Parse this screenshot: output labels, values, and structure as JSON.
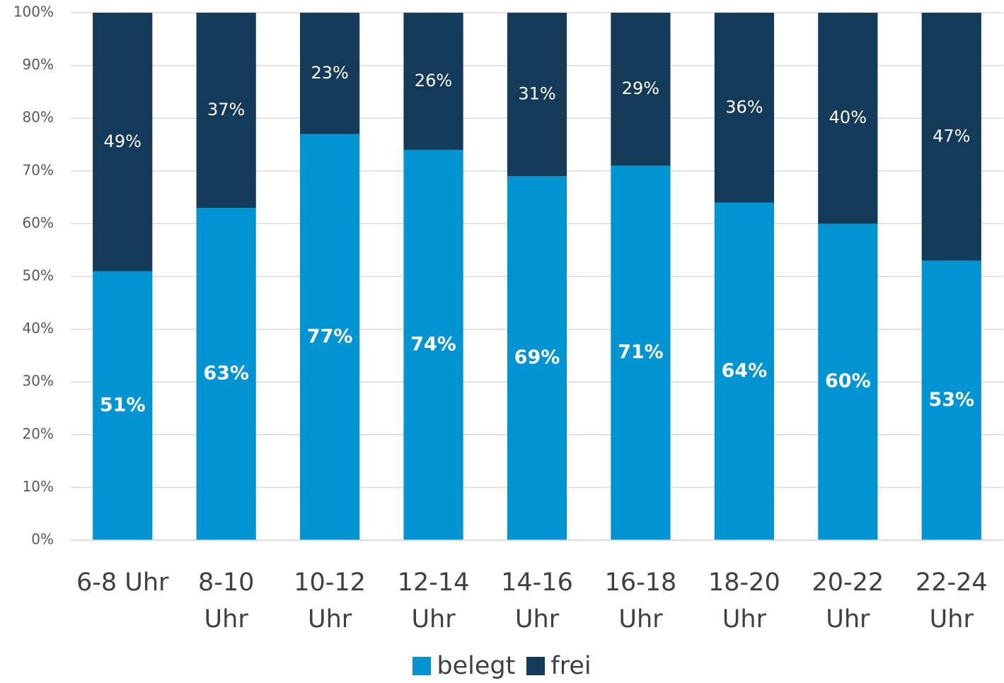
{
  "chart_data": {
    "type": "stacked_bar",
    "categories": [
      "6-8 Uhr",
      "8-10 Uhr",
      "10-12 Uhr",
      "12-14 Uhr",
      "14-16 Uhr",
      "16-18 Uhr",
      "18-20 Uhr",
      "20-22 Uhr",
      "22-24 Uhr"
    ],
    "series": [
      {
        "name": "belegt",
        "color": "#0095d2",
        "values": [
          51,
          63,
          77,
          74,
          69,
          71,
          64,
          60,
          53
        ],
        "value_labels": [
          "51%",
          "63%",
          "77%",
          "74%",
          "69%",
          "71%",
          "64%",
          "60%",
          "53%"
        ]
      },
      {
        "name": "frei",
        "color": "#143a5a",
        "values": [
          49,
          37,
          23,
          26,
          31,
          29,
          36,
          40,
          47
        ],
        "value_labels": [
          "49%",
          "37%",
          "23%",
          "26%",
          "31%",
          "29%",
          "36%",
          "40%",
          "47%"
        ]
      }
    ],
    "ylim": [
      0,
      100
    ],
    "yticks": [
      {
        "value": 0,
        "label": "0%"
      },
      {
        "value": 10,
        "label": "10%"
      },
      {
        "value": 20,
        "label": "20%"
      },
      {
        "value": 30,
        "label": "30%"
      },
      {
        "value": 40,
        "label": "40%"
      },
      {
        "value": 50,
        "label": "50%"
      },
      {
        "value": 60,
        "label": "60%"
      },
      {
        "value": 70,
        "label": "70%"
      },
      {
        "value": 80,
        "label": "80%"
      },
      {
        "value": 90,
        "label": "90%"
      },
      {
        "value": 100,
        "label": "100%"
      }
    ],
    "grid": true,
    "legend": "bottom"
  }
}
